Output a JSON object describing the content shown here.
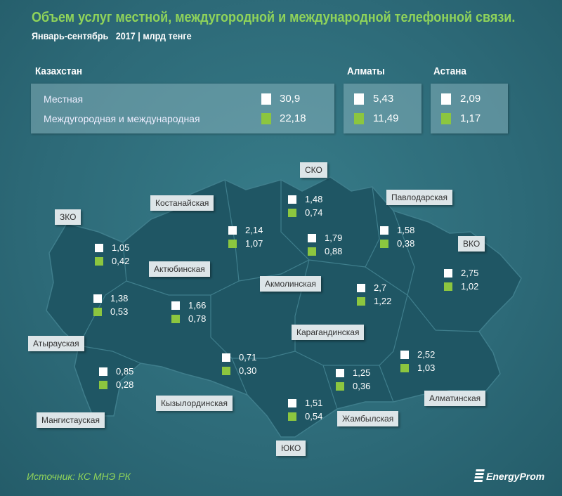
{
  "title": "Объем услуг местной, междугородной и международной телефонной связи.",
  "subtitle": "Январь-сентябрь   2017 | млрд тенге",
  "legend_colors": {
    "local": "#ffffff",
    "long_distance": "#8cc63f"
  },
  "summary": {
    "kazakhstan": {
      "title": "Казахстан",
      "local_label": "Местная",
      "ld_label": "Междугородная и международная",
      "local": "30,9",
      "ld": "22,18"
    },
    "almaty": {
      "title": "Алматы",
      "local": "5,43",
      "ld": "11,49"
    },
    "astana": {
      "title": "Астана",
      "local": "2,09",
      "ld": "1,17"
    }
  },
  "regions": [
    {
      "name": "ЗКО",
      "local": "1,05",
      "ld": "0,42"
    },
    {
      "name": "Костанайская",
      "local": "2,14",
      "ld": "1,07"
    },
    {
      "name": "СКО",
      "local": "1,48",
      "ld": "0,74"
    },
    {
      "name": "Павлодарская",
      "local": "1,58",
      "ld": "0,38"
    },
    {
      "name": "ВКО",
      "local": "2,75",
      "ld": "1,02"
    },
    {
      "name": "Акмолинская",
      "local": "1,79",
      "ld": "0,88"
    },
    {
      "name": "Актюбинская",
      "local": "1,66",
      "ld": "0,78"
    },
    {
      "name": "Атырауская",
      "local": "1,38",
      "ld": "0,53"
    },
    {
      "name": "Карагандинская",
      "local": "2,7",
      "ld": "1,22"
    },
    {
      "name": "Мангистауская",
      "local": "0,85",
      "ld": "0,28"
    },
    {
      "name": "Кызылординская",
      "local": "0,71",
      "ld": "0,30"
    },
    {
      "name": "ЮКО",
      "local": "1,51",
      "ld": "0,54"
    },
    {
      "name": "Жамбылская",
      "local": "1,25",
      "ld": "0,36"
    },
    {
      "name": "Алматинская",
      "local": "2,52",
      "ld": "1,03"
    }
  ],
  "source": "Источник: КС МНЭ РК",
  "logo": "EnergyProm"
}
